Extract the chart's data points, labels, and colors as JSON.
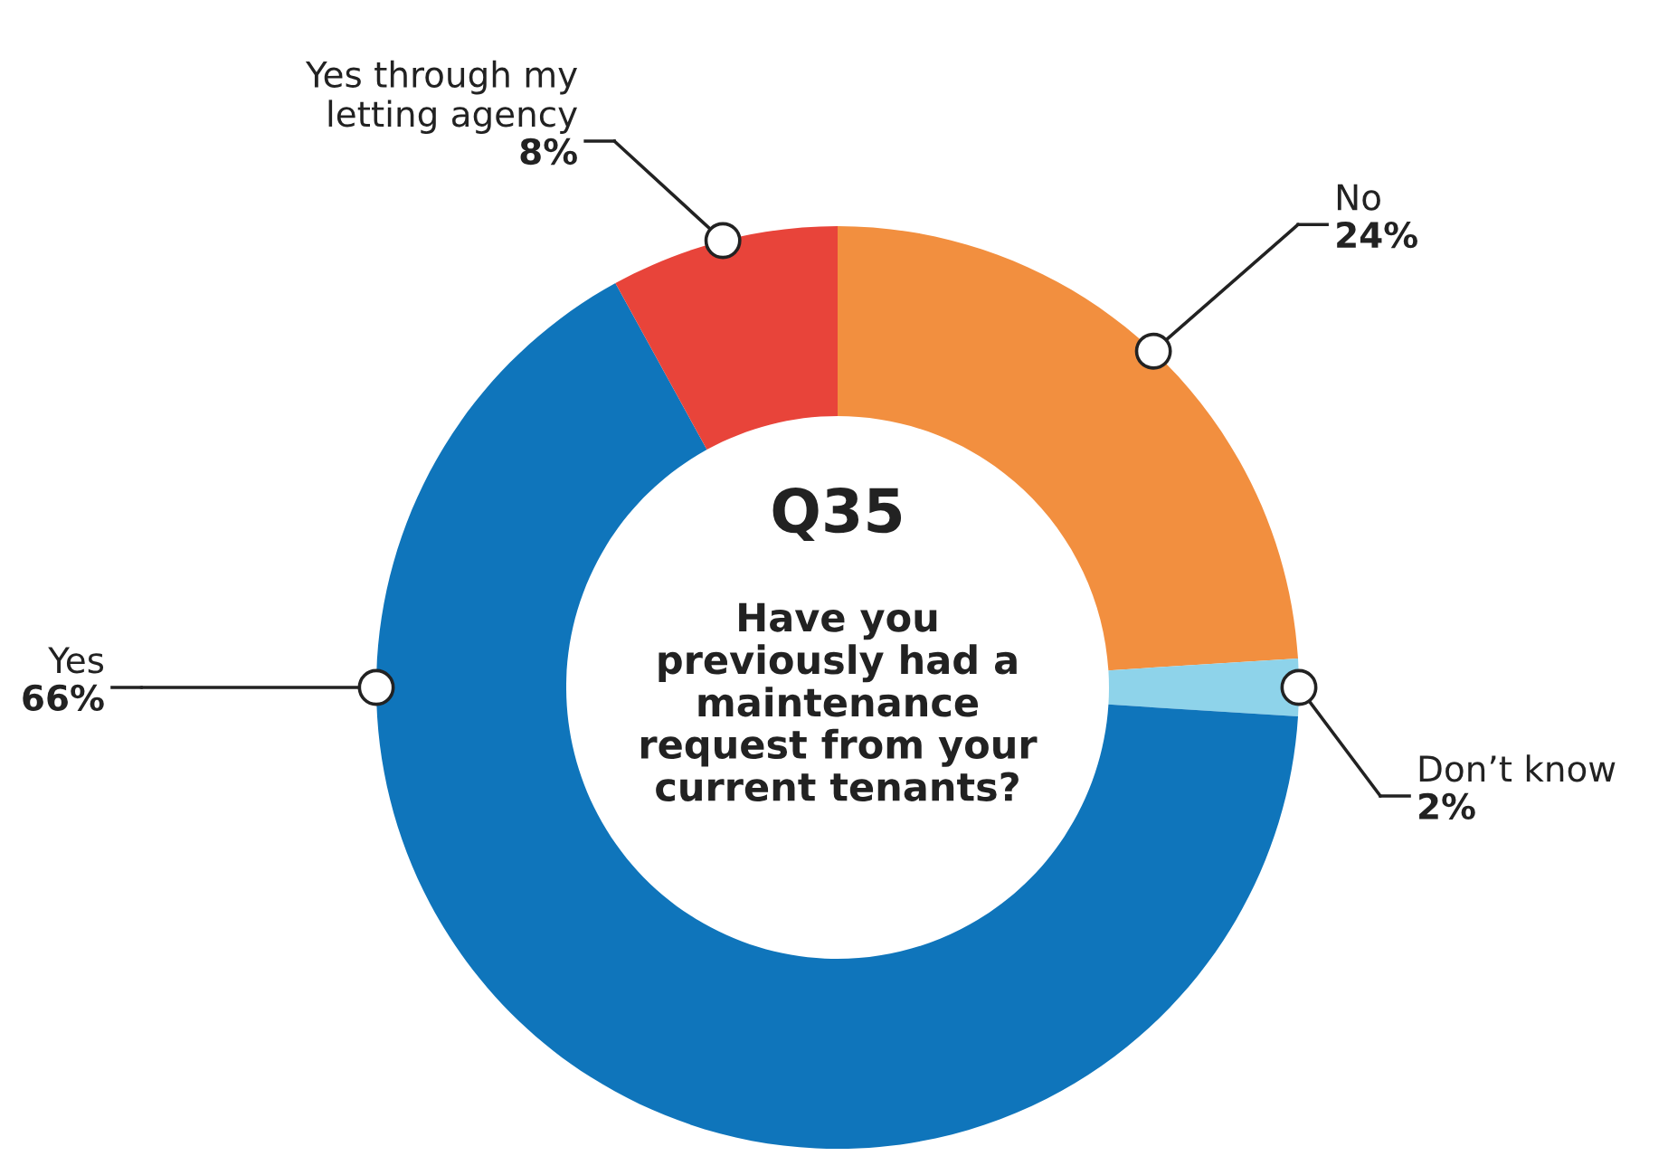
{
  "chart_data": {
    "type": "donut",
    "title": "Q35",
    "subtitle": "Have you\npreviously had a\nmaintenance\nrequest from your\ncurrent tenants?",
    "categories": [
      "No",
      "Don’t know",
      "Yes",
      "Yes through my\nletting agency"
    ],
    "values": [
      24,
      2,
      66,
      8
    ],
    "value_labels": [
      "24%",
      "2%",
      "66%",
      "8%"
    ],
    "colors": [
      "#f28f3f",
      "#8ed3ea",
      "#0f75bb",
      "#e8443a"
    ],
    "legend": false
  }
}
